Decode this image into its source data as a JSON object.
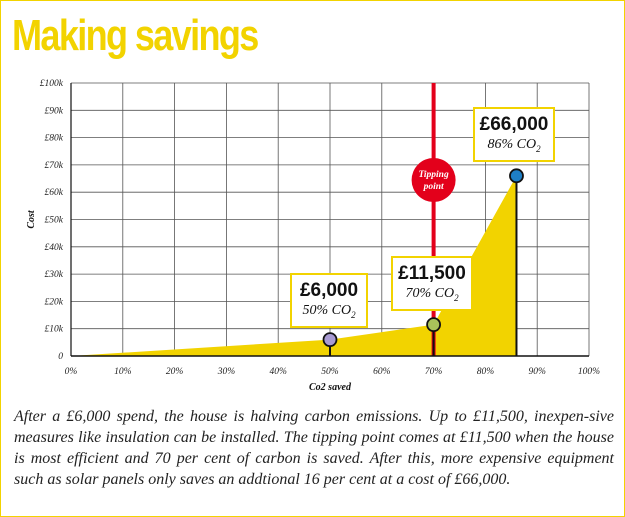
{
  "title": "Making savings",
  "caption": "After a £6,000 spend, the house is halving carbon emissions. Up to £11,500, inexpen-sive measures like insulation can be installed. The tipping point comes at £11,500 when the house is most efficient and 70 per cent of carbon is saved. After this, more expensive equipment such as solar panels only saves an addtional 16 per cent at a cost of £66,000.",
  "colors": {
    "accent": "#f2d300",
    "tipping_line": "#e3001b",
    "grid": "#555555"
  },
  "callouts": [
    {
      "amount": "£6,000",
      "co2": "50% CO",
      "sub": "2",
      "point_color": "#a99bd3"
    },
    {
      "amount": "£11,500",
      "co2": "70% CO",
      "sub": "2",
      "point_color": "#a9c35a"
    },
    {
      "amount": "£66,000",
      "co2": "86% CO",
      "sub": "2",
      "point_color": "#1e7fc6"
    }
  ],
  "tipping_label": [
    "Tipping",
    "point"
  ],
  "chart_data": {
    "type": "area",
    "xlabel": "Co2 saved",
    "ylabel": "Cost",
    "x_ticks": [
      "0%",
      "10%",
      "20%",
      "30%",
      "40%",
      "50%",
      "60%",
      "70%",
      "80%",
      "90%",
      "100%"
    ],
    "y_ticks": [
      "0",
      "£10k",
      "£20k",
      "£30k",
      "£40k",
      "£50k",
      "£60k",
      "£70k",
      "£80k",
      "£90k",
      "£100k"
    ],
    "xlim": [
      0,
      100
    ],
    "ylim": [
      0,
      100000
    ],
    "series": [
      {
        "x": [
          0,
          50,
          70,
          86
        ],
        "y": [
          0,
          6000,
          11500,
          66000
        ]
      }
    ],
    "highlighted_points": [
      {
        "x": 50,
        "y": 6000
      },
      {
        "x": 70,
        "y": 11500
      },
      {
        "x": 86,
        "y": 66000
      }
    ],
    "vertical_line_x": 70,
    "grid": true
  }
}
